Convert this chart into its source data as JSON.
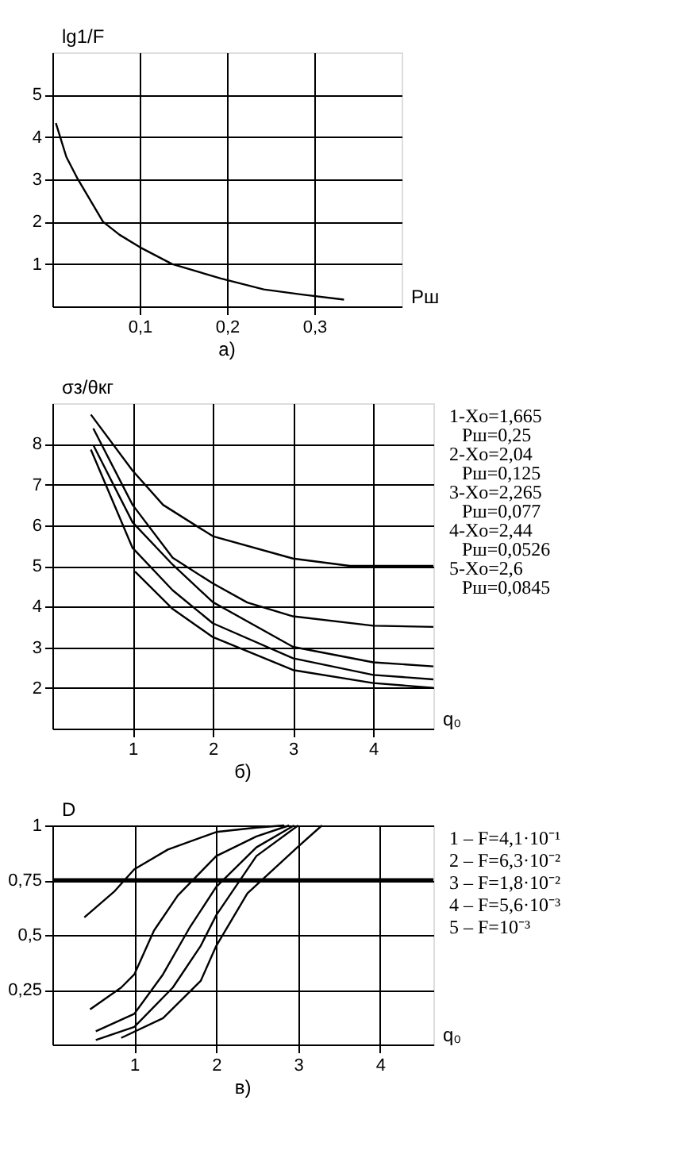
{
  "chart_data": [
    {
      "type": "line",
      "title": "а)",
      "xlabel": "Рш",
      "ylabel": "lg1/F",
      "xlim": [
        0,
        0.4
      ],
      "ylim": [
        0,
        6
      ],
      "xticks": [
        {
          "value": 0.1,
          "label": "0,1"
        },
        {
          "value": 0.2,
          "label": "0,2"
        },
        {
          "value": 0.3,
          "label": "0,3"
        }
      ],
      "yticks": [
        1,
        2,
        3,
        4,
        5
      ],
      "grid": true,
      "series": [
        {
          "color": "#000000",
          "x": [
            0.004,
            0.016,
            0.029,
            0.058,
            0.077,
            0.1,
            0.137,
            0.193,
            0.242,
            0.286,
            0.334
          ],
          "values": [
            4.33,
            3.53,
            3.01,
            2.0,
            1.69,
            1.4,
            1.0,
            0.66,
            0.4,
            0.28,
            0.16
          ]
        }
      ]
    },
    {
      "type": "line",
      "title": "б)",
      "xlabel": "q₀",
      "ylabel": "σз/θкг",
      "xlim": [
        0,
        4.75
      ],
      "ylim": [
        1,
        9
      ],
      "xticks": [
        1,
        2,
        3,
        4
      ],
      "yticks": [
        2,
        3,
        4,
        5,
        6,
        7,
        8
      ],
      "grid": true,
      "annotations": [
        "1-Xo=1,665",
        "Рш=0,25",
        "2-Xo=2,04",
        "Рш=0,125",
        "3-Xo=2,265",
        "Рш=0,077",
        "4-Xo=2,44",
        "Рш=0,0526",
        "5-Xo=2,6",
        "Рш=0,0845"
      ],
      "series": [
        {
          "color": "#000000",
          "x": [
            0.48,
            1.0,
            1.38,
            2.0,
            3.0,
            3.71,
            4.75
          ],
          "values": [
            8.72,
            7.34,
            6.5,
            5.73,
            5.18,
            5.0,
            5.0
          ]
        },
        {
          "color": "#000000",
          "x": [
            0.51,
            1.0,
            1.5,
            2.0,
            2.43,
            3.0,
            4.0,
            4.75
          ],
          "values": [
            8.38,
            6.5,
            5.2,
            4.57,
            4.1,
            3.76,
            3.53,
            3.5
          ]
        },
        {
          "color": "#000000",
          "x": [
            0.51,
            1.0,
            1.5,
            2.0,
            3.0,
            4.0,
            4.75
          ],
          "values": [
            7.97,
            6.07,
            5.03,
            4.11,
            3.01,
            2.63,
            2.53
          ]
        },
        {
          "color": "#000000",
          "x": [
            0.48,
            1.0,
            1.5,
            2.0,
            3.0,
            4.0,
            4.75
          ],
          "values": [
            7.86,
            5.44,
            4.4,
            3.59,
            2.73,
            2.32,
            2.21
          ]
        },
        {
          "color": "#000000",
          "x": [
            1.03,
            1.5,
            2.0,
            3.0,
            4.0,
            4.75
          ],
          "values": [
            4.86,
            3.94,
            3.25,
            2.44,
            2.12,
            2.0
          ]
        }
      ]
    },
    {
      "type": "line",
      "title": "в)",
      "xlabel": "q₀",
      "ylabel": "D",
      "xlim": [
        0,
        4.65
      ],
      "ylim": [
        0,
        1
      ],
      "xticks": [
        1,
        2,
        3,
        4
      ],
      "yticks": [
        {
          "value": 0.25,
          "label": "0,25"
        },
        {
          "value": 0.5,
          "label": "0,5"
        },
        {
          "value": 0.75,
          "label": "0,75"
        },
        1
      ],
      "grid": true,
      "ref_lines": [
        {
          "axis": "y",
          "value": 0.75
        }
      ],
      "annotations": [
        "1 – F=4,1·10⁻¹",
        "2 – F=6,3·10⁻²",
        "3 – F=1,8·10⁻²",
        "4 – F=5,6·10⁻³",
        "5 – F=10⁻³"
      ],
      "series": [
        {
          "color": "#000000",
          "x": [
            0.39,
            0.76,
            1.0,
            1.41,
            2.0,
            2.49,
            2.83
          ],
          "values": [
            0.58,
            0.7,
            0.8,
            0.89,
            0.97,
            0.99,
            1.0
          ]
        },
        {
          "color": "#000000",
          "x": [
            0.46,
            0.84,
            1.0,
            1.24,
            1.53,
            2.0,
            2.49,
            2.89
          ],
          "values": [
            0.16,
            0.26,
            0.32,
            0.52,
            0.68,
            0.86,
            0.95,
            1.0
          ]
        },
        {
          "color": "#000000",
          "x": [
            0.53,
            1.0,
            1.35,
            1.67,
            2.0,
            2.49,
            2.95
          ],
          "values": [
            0.06,
            0.14,
            0.32,
            0.53,
            0.72,
            0.9,
            1.0
          ]
        },
        {
          "color": "#000000",
          "x": [
            0.53,
            1.0,
            1.47,
            1.81,
            2.0,
            2.49,
            3.0
          ],
          "values": [
            0.02,
            0.08,
            0.26,
            0.45,
            0.59,
            0.86,
            1.0
          ]
        },
        {
          "color": "#000000",
          "x": [
            0.84,
            1.35,
            1.81,
            2.0,
            2.38,
            2.99,
            3.29
          ],
          "values": [
            0.03,
            0.12,
            0.29,
            0.45,
            0.69,
            0.9,
            1.0
          ]
        }
      ]
    }
  ]
}
